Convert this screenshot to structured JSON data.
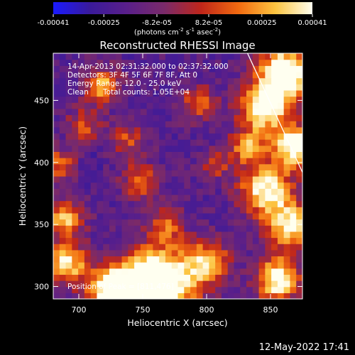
{
  "colorbar": {
    "tick_labels": [
      "-0.00041",
      "-0.00025",
      "-8.2e-05",
      "8.2e-05",
      "0.00025",
      "0.00041"
    ],
    "tick_values": [
      -0.00041,
      -0.00025,
      -8.2e-05,
      8.2e-05,
      0.00025,
      0.00041
    ],
    "range": [
      -0.00041,
      0.00041
    ],
    "units_main": "(photons cm",
    "units_exp1": "-2",
    "units_mid": " s",
    "units_exp2": "-1",
    "units_end": " asec",
    "units_exp3": "-2",
    "units_close": ")",
    "colors": [
      "#1a1aff",
      "#3a1a9a",
      "#5a1f8a",
      "#7a2a6a",
      "#c0261a",
      "#f26a10",
      "#fcc440",
      "#fffff0"
    ]
  },
  "chart_data": {
    "type": "heatmap",
    "title": "Reconstructed RHESSI Image",
    "xlabel": "Heliocentric X (arcsec)",
    "ylabel": "Heliocentric Y (arcsec)",
    "xlim": [
      680,
      875
    ],
    "ylim": [
      290,
      488
    ],
    "x_ticks": [
      700,
      750,
      800,
      850
    ],
    "y_ticks": [
      300,
      350,
      400,
      450
    ],
    "annotations": {
      "line1": "14-Apr-2013 02:31:32.000 to 02:37:32.000",
      "line2": "Detectors: 3F 4F 5F 6F 7F 8F, Att 0",
      "line3": "Energy Range: 12.0 - 25.0 keV",
      "line4_a": "Clean",
      "line4_b": "Total counts: 1.05E+04",
      "peak": "Position of Peak = [811,476]"
    },
    "peak_position": [
      811,
      476
    ],
    "limb_line": [
      [
        832,
        488
      ],
      [
        875,
        392
      ]
    ],
    "intensity_grid_size": [
      40,
      40
    ]
  },
  "footer": "12-May-2022 17:41"
}
